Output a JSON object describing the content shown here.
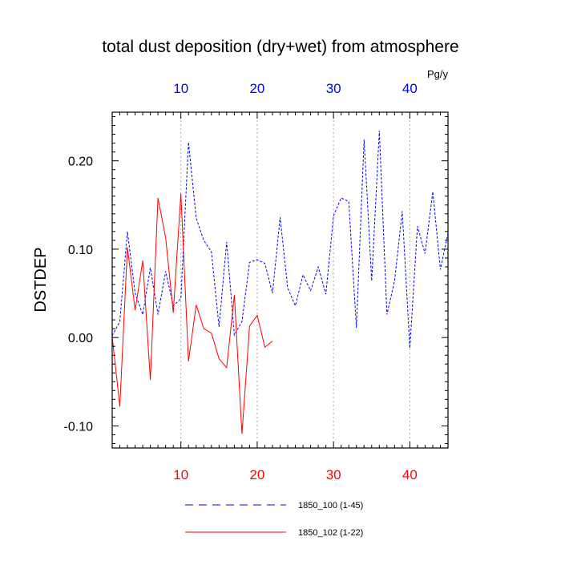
{
  "chart_data": {
    "type": "line",
    "title": "total dust deposition (dry+wet) from atmosphere",
    "ylabel": "DSTDEP",
    "units": "Pg/y",
    "xlim": [
      1,
      45
    ],
    "ylim": [
      -0.125,
      0.255
    ],
    "x_ticks": [
      10,
      20,
      30,
      40
    ],
    "y_ticks": [
      -0.1,
      0.0,
      0.1,
      0.2
    ],
    "y_tick_labels": [
      "-0.10",
      "0.00",
      "0.10",
      "0.20"
    ],
    "top_tick_labels": [
      "10",
      "20",
      "30",
      "40"
    ],
    "bottom_tick_labels": [
      "10",
      "20",
      "30",
      "40"
    ],
    "grid": "vertical-dotted",
    "legend_position": "bottom",
    "series": [
      {
        "name": "1850_100 (1-45)",
        "color": "#0000ff",
        "dash": "dashed",
        "x": [
          1,
          2,
          3,
          4,
          5,
          6,
          7,
          8,
          9,
          10,
          11,
          12,
          13,
          14,
          15,
          16,
          17,
          18,
          19,
          20,
          21,
          22,
          23,
          24,
          25,
          26,
          27,
          28,
          29,
          30,
          31,
          32,
          33,
          34,
          35,
          36,
          37,
          38,
          39,
          40,
          41,
          42,
          43,
          44,
          45
        ],
        "values": [
          0.002,
          0.018,
          0.12,
          0.05,
          0.026,
          0.079,
          0.026,
          0.075,
          0.036,
          0.044,
          0.221,
          0.135,
          0.11,
          0.097,
          0.012,
          0.108,
          0.003,
          0.018,
          0.085,
          0.088,
          0.084,
          0.05,
          0.136,
          0.056,
          0.036,
          0.071,
          0.053,
          0.08,
          0.049,
          0.138,
          0.158,
          0.154,
          0.011,
          0.224,
          0.064,
          0.234,
          0.026,
          0.064,
          0.143,
          -0.012,
          0.126,
          0.095,
          0.165,
          0.077,
          0.118
        ]
      },
      {
        "name": "1850_102 (1-22)",
        "color": "#ff0000",
        "dash": "solid",
        "x": [
          1,
          2,
          3,
          4,
          5,
          6,
          7,
          8,
          9,
          10,
          11,
          12,
          13,
          14,
          15,
          16,
          17,
          18,
          19,
          20,
          21,
          22
        ],
        "values": [
          0.001,
          -0.078,
          0.102,
          0.031,
          0.087,
          -0.048,
          0.158,
          0.113,
          0.028,
          0.163,
          -0.027,
          0.037,
          0.01,
          0.005,
          -0.024,
          -0.034,
          0.048,
          -0.109,
          0.013,
          0.025,
          -0.011,
          -0.004
        ]
      }
    ]
  }
}
